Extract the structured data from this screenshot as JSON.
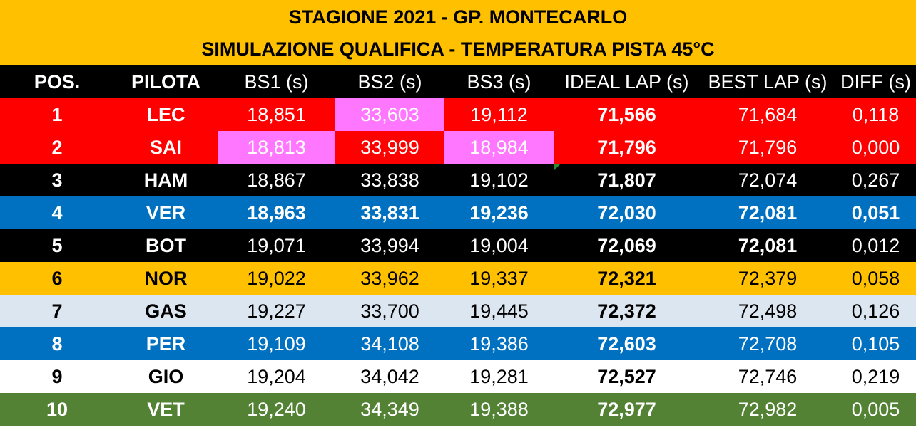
{
  "title": {
    "line1": "STAGIONE 2021 - GP. MONTECARLO",
    "line2": "SIMULAZIONE QUALIFICA - TEMPERATURA PISTA 45°C"
  },
  "columns": [
    "POS.",
    "PILOTA",
    "BS1 (s)",
    "BS2 (s)",
    "BS3 (s)",
    "IDEAL LAP (s)",
    "BEST LAP (s)",
    "DIFF (s)"
  ],
  "rows": [
    {
      "pos": "1",
      "driver": "LEC",
      "bs1": "18,851",
      "bs2": "33,603",
      "bs3": "19,112",
      "ideal": "71,566",
      "best": "71,684",
      "diff": "0,118"
    },
    {
      "pos": "2",
      "driver": "SAI",
      "bs1": "18,813",
      "bs2": "33,999",
      "bs3": "18,984",
      "ideal": "71,796",
      "best": "71,796",
      "diff": "0,000"
    },
    {
      "pos": "3",
      "driver": "HAM",
      "bs1": "18,867",
      "bs2": "33,838",
      "bs3": "19,102",
      "ideal": "71,807",
      "best": "72,074",
      "diff": "0,267"
    },
    {
      "pos": "4",
      "driver": "VER",
      "bs1": "18,963",
      "bs2": "33,831",
      "bs3": "19,236",
      "ideal": "72,030",
      "best": "72,081",
      "diff": "0,051"
    },
    {
      "pos": "5",
      "driver": "BOT",
      "bs1": "19,071",
      "bs2": "33,994",
      "bs3": "19,004",
      "ideal": "72,069",
      "best": "72,081",
      "diff": "0,012"
    },
    {
      "pos": "6",
      "driver": "NOR",
      "bs1": "19,022",
      "bs2": "33,962",
      "bs3": "19,337",
      "ideal": "72,321",
      "best": "72,379",
      "diff": "0,058"
    },
    {
      "pos": "7",
      "driver": "GAS",
      "bs1": "19,227",
      "bs2": "33,700",
      "bs3": "19,445",
      "ideal": "72,372",
      "best": "72,498",
      "diff": "0,126"
    },
    {
      "pos": "8",
      "driver": "PER",
      "bs1": "19,109",
      "bs2": "34,108",
      "bs3": "19,386",
      "ideal": "72,603",
      "best": "72,708",
      "diff": "0,105"
    },
    {
      "pos": "9",
      "driver": "GIO",
      "bs1": "19,204",
      "bs2": "34,042",
      "bs3": "19,281",
      "ideal": "72,527",
      "best": "72,746",
      "diff": "0,219"
    },
    {
      "pos": "10",
      "driver": "VET",
      "bs1": "19,240",
      "bs2": "34,349",
      "bs3": "19,388",
      "ideal": "72,977",
      "best": "72,982",
      "diff": "0,005"
    }
  ],
  "colors": {
    "header_band": "#ffc000",
    "column_header": "#000000",
    "best_sector_highlight": "#ff77ff",
    "team_rows": [
      "#ff0000",
      "#ff0000",
      "#000000",
      "#0070c0",
      "#000000",
      "#ffc000",
      "#dce6f1",
      "#0070c0",
      "#ffffff",
      "#548235"
    ],
    "team_text": [
      "#ffffff",
      "#ffffff",
      "#ffffff",
      "#ffffff",
      "#ffffff",
      "#000000",
      "#000000",
      "#ffffff",
      "#000000",
      "#ffffff"
    ]
  }
}
